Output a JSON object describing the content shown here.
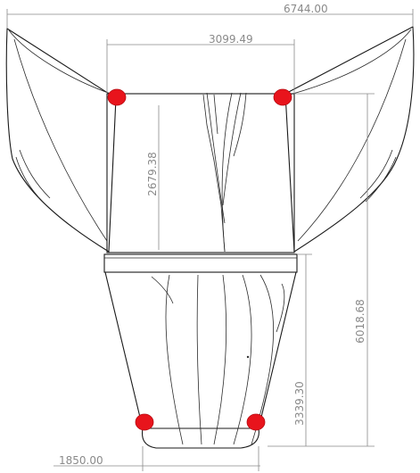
{
  "dimensions": {
    "overall_width": "6744.00",
    "body_width": "3099.49",
    "upper_height": "2679.38",
    "total_height": "6018.68",
    "lower_height": "3339.30",
    "base_width": "1850.00"
  },
  "markers": {
    "color": "#e8141c",
    "count": 4
  }
}
